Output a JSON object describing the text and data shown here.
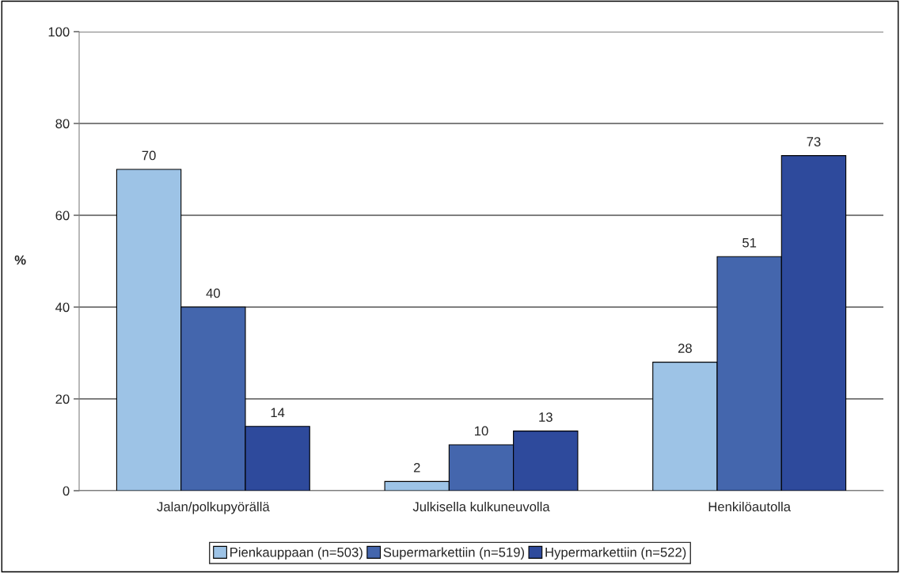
{
  "chart_data": {
    "type": "bar",
    "ylabel": "%",
    "categories": [
      "Jalan/polkupyörällä",
      "Julkisella kulkuneuvolla",
      "Henkilöautolla"
    ],
    "series": [
      {
        "name": "Pienkauppaan (n=503)",
        "color": "#9dc3e6",
        "values": [
          70,
          2,
          28
        ]
      },
      {
        "name": "Supermarkettiin (n=519)",
        "color": "#4466ad",
        "values": [
          40,
          10,
          51
        ]
      },
      {
        "name": "Hypermarkettiin (n=522)",
        "color": "#2e4a9c",
        "values": [
          14,
          13,
          73
        ]
      }
    ],
    "ylim": [
      0,
      100
    ],
    "yticks": [
      0,
      20,
      40,
      60,
      80,
      100
    ],
    "grid": "y",
    "legend": "bottom",
    "data_labels": true
  }
}
